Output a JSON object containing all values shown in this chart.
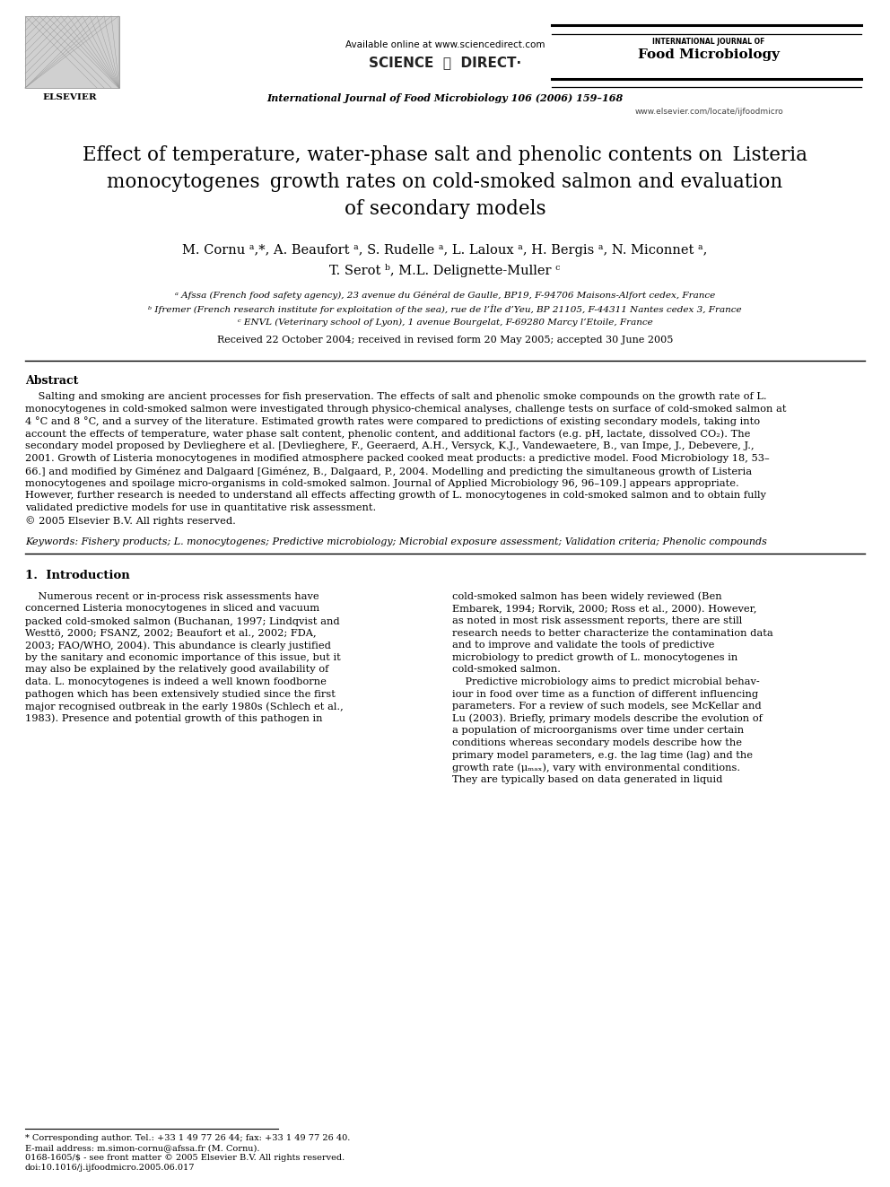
{
  "fig_width": 9.92,
  "fig_height": 13.23,
  "bg_color": "#ffffff",
  "header_available": "Available online at www.sciencedirect.com",
  "header_scidir": "SCIENCE  ⓐ  DIRECT·",
  "header_journal_top": "INTERNATIONAL JOURNAL OF",
  "header_journal_name": "Food Microbiology",
  "header_journal_ref": "International Journal of Food Microbiology 106 (2006) 159–168",
  "header_url": "www.elsevier.com/locate/ijfoodmicro",
  "title_part1": "Effect of temperature, water-phase salt and phenolic contents on ",
  "title_italic1": "Listeria",
  "title_italic2": "monocytogenes",
  "title_part2": " growth rates on cold-smoked salmon and evaluation",
  "title_part3": "of secondary models",
  "authors1": "M. Cornu ᵃ,*, A. Beaufort ᵃ, S. Rudelle ᵃ, L. Laloux ᵃ, H. Bergis ᵃ, N. Miconnet ᵃ,",
  "authors2": "T. Serot ᵇ, M.L. Delignette-Muller ᶜ",
  "affil_a": "ᵃ Afssa (French food safety agency), 23 avenue du Général de Gaulle, BP19, F-94706 Maisons-Alfort cedex, France",
  "affil_b": "ᵇ Ifremer (French research institute for exploitation of the sea), rue de l’Île d’Yeu, BP 21105, F-44311 Nantes cedex 3, France",
  "affil_c": "ᶜ ENVL (Veterinary school of Lyon), 1 avenue Bourgelat, F-69280 Marcy l’Etoile, France",
  "received": "Received 22 October 2004; received in revised form 20 May 2005; accepted 30 June 2005",
  "abstract_title": "Abstract",
  "abstract_line1": "    Salting and smoking are ancient processes for fish preservation. The effects of salt and phenolic smoke compounds on the growth rate of L.",
  "abstract_line2": "monocytogenes in cold-smoked salmon were investigated through physico-chemical analyses, challenge tests on surface of cold-smoked salmon at",
  "abstract_line3": "4 °C and 8 °C, and a survey of the literature. Estimated growth rates were compared to predictions of existing secondary models, taking into",
  "abstract_line4": "account the effects of temperature, water phase salt content, phenolic content, and additional factors (e.g. pH, lactate, dissolved CO₂). The",
  "abstract_line5": "secondary model proposed by Devlieghere et al. [Devlieghere, F., Geeraerd, A.H., Versyck, K.J., Vandewaetere, B., van Impe, J., Debevere, J.,",
  "abstract_line6": "2001. Growth of Listeria monocytogenes in modified atmosphere packed cooked meat products: a predictive model. Food Microbiology 18, 53–",
  "abstract_line7": "66.] and modified by Giménez and Dalgaard [Giménez, B., Dalgaard, P., 2004. Modelling and predicting the simultaneous growth of Listeria",
  "abstract_line8": "monocytogenes and spoilage micro-organisms in cold-smoked salmon. Journal of Applied Microbiology 96, 96–109.] appears appropriate.",
  "abstract_line9": "However, further research is needed to understand all effects affecting growth of L. monocytogenes in cold-smoked salmon and to obtain fully",
  "abstract_line10": "validated predictive models for use in quantitative risk assessment.",
  "abstract_copy": "© 2005 Elsevier B.V. All rights reserved.",
  "keywords": "Keywords: Fishery products; L. monocytogenes; Predictive microbiology; Microbial exposure assessment; Validation criteria; Phenolic compounds",
  "sec1_title": "1.  Introduction",
  "col1_lines": [
    "    Numerous recent or in-process risk assessments have",
    "concerned Listeria monocytogenes in sliced and vacuum",
    "packed cold-smoked salmon (Buchanan, 1997; Lindqvist and",
    "Westtö, 2000; FSANZ, 2002; Beaufort et al., 2002; FDA,",
    "2003; FAO/WHO, 2004). This abundance is clearly justified",
    "by the sanitary and economic importance of this issue, but it",
    "may also be explained by the relatively good availability of",
    "data. L. monocytogenes is indeed a well known foodborne",
    "pathogen which has been extensively studied since the first",
    "major recognised outbreak in the early 1980s (Schlech et al.,",
    "1983). Presence and potential growth of this pathogen in"
  ],
  "col2_lines": [
    "cold-smoked salmon has been widely reviewed (Ben",
    "Embarek, 1994; Rorvik, 2000; Ross et al., 2000). However,",
    "as noted in most risk assessment reports, there are still",
    "research needs to better characterize the contamination data",
    "and to improve and validate the tools of predictive",
    "microbiology to predict growth of L. monocytogenes in",
    "cold-smoked salmon.",
    "    Predictive microbiology aims to predict microbial behav-",
    "iour in food over time as a function of different influencing",
    "parameters. For a review of such models, see McKellar and",
    "Lu (2003). Briefly, primary models describe the evolution of",
    "a population of microorganisms over time under certain",
    "conditions whereas secondary models describe how the",
    "primary model parameters, e.g. the lag time (lag) and the",
    "growth rate (μₘₐₓ), vary with environmental conditions.",
    "They are typically based on data generated in liquid"
  ],
  "fn1": "* Corresponding author. Tel.: +33 1 49 77 26 44; fax: +33 1 49 77 26 40.",
  "fn2": "E-mail address: m.simon-cornu@afssa.fr (M. Cornu).",
  "fn3": "0168-1605/$ - see front matter © 2005 Elsevier B.V. All rights reserved.",
  "fn4": "doi:10.1016/j.ijfoodmicro.2005.06.017"
}
